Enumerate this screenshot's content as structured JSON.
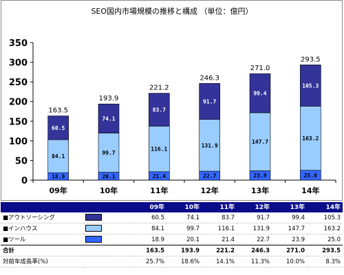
{
  "chart_data": {
    "type": "bar",
    "stacked": true,
    "title": "SEO国内市場規模の推移と構成 （単位：億円）",
    "categories": [
      "09年",
      "10年",
      "11年",
      "12年",
      "13年",
      "14年"
    ],
    "series": [
      {
        "name": "ツール",
        "values": [
          18.9,
          20.1,
          21.4,
          22.7,
          23.9,
          25.0
        ],
        "color": "#3366ff"
      },
      {
        "name": "インハウス",
        "values": [
          84.1,
          99.7,
          116.1,
          131.9,
          147.7,
          163.2
        ],
        "color": "#99ccff"
      },
      {
        "name": "アウトソーシング",
        "values": [
          60.5,
          74.1,
          83.7,
          91.7,
          99.4,
          105.3
        ],
        "color": "#333399"
      }
    ],
    "totals": [
      163.5,
      193.9,
      221.2,
      246.3,
      271.0,
      293.5
    ],
    "ylim": [
      0,
      350
    ],
    "yticks": [
      0,
      50,
      100,
      150,
      200,
      250,
      300,
      350
    ],
    "xlabel": "",
    "ylabel": "",
    "grid": false
  },
  "table": {
    "years": [
      "09年",
      "10年",
      "11年",
      "12年",
      "13年",
      "14年"
    ],
    "rows": [
      {
        "label": "■アウトソーシング",
        "color": "#333399",
        "values": [
          "60.5",
          "74.1",
          "83.7",
          "91.7",
          "99.4",
          "105.3"
        ]
      },
      {
        "label": "■インハウス",
        "color": "#99ccff",
        "values": [
          "84.1",
          "99.7",
          "116.1",
          "131.9",
          "147.7",
          "163.2"
        ]
      },
      {
        "label": "■ツール",
        "color": "#3366ff",
        "values": [
          "18.9",
          "20.1",
          "21.4",
          "22.7",
          "23.9",
          "25.0"
        ]
      }
    ],
    "total_label": "合計",
    "total_values": [
      "163.5",
      "193.9",
      "221.2",
      "246.3",
      "271.0",
      "293.5"
    ],
    "growth_label": "対前年成長率(%)",
    "growth_values": [
      "25.7%",
      "18.6%",
      "14.1%",
      "11.3%",
      "10.0%",
      "8.3%"
    ]
  }
}
